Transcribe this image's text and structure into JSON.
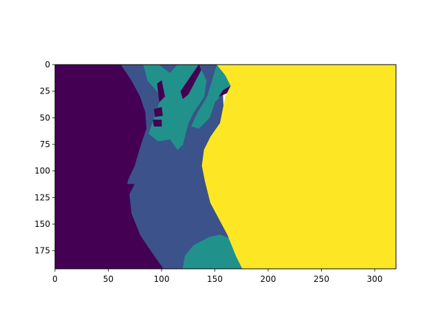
{
  "chart_data": {
    "type": "heatmap",
    "title": "",
    "xlabel": "",
    "ylabel": "",
    "xlim": [
      0,
      320
    ],
    "ylim": [
      192,
      0
    ],
    "xticks": [
      0,
      50,
      100,
      150,
      200,
      250,
      300
    ],
    "yticks": [
      0,
      25,
      50,
      75,
      100,
      125,
      150,
      175
    ],
    "grid": false,
    "colormap": "viridis",
    "classes": [
      {
        "value": 0,
        "color": "#440154"
      },
      {
        "value": 1,
        "color": "#3b528b"
      },
      {
        "value": 2,
        "color": "#21918c"
      },
      {
        "value": 3,
        "color": "#fde725"
      }
    ],
    "regions": [
      {
        "name": "region-dark-purple",
        "value": 0,
        "points": [
          [
            0,
            0
          ],
          [
            62,
            0
          ],
          [
            72,
            15
          ],
          [
            80,
            30
          ],
          [
            85,
            45
          ],
          [
            86,
            60
          ],
          [
            80,
            78
          ],
          [
            75,
            95
          ],
          [
            69,
            108
          ],
          [
            68,
            112
          ],
          [
            75,
            112
          ],
          [
            70,
            122
          ],
          [
            72,
            140
          ],
          [
            80,
            160
          ],
          [
            90,
            175
          ],
          [
            102,
            190
          ],
          [
            102,
            192
          ],
          [
            0,
            192
          ]
        ]
      },
      {
        "name": "region-slate-blue",
        "value": 1,
        "points": [
          [
            62,
            0
          ],
          [
            152,
            0
          ],
          [
            157,
            20
          ],
          [
            158,
            40
          ],
          [
            155,
            55
          ],
          [
            146,
            68
          ],
          [
            140,
            80
          ],
          [
            138,
            95
          ],
          [
            141,
            110
          ],
          [
            146,
            130
          ],
          [
            154,
            145
          ],
          [
            162,
            160
          ],
          [
            170,
            180
          ],
          [
            176,
            192
          ],
          [
            102,
            192
          ],
          [
            90,
            175
          ],
          [
            80,
            160
          ],
          [
            72,
            140
          ],
          [
            70,
            122
          ],
          [
            75,
            112
          ],
          [
            68,
            112
          ],
          [
            69,
            108
          ],
          [
            75,
            95
          ],
          [
            80,
            78
          ],
          [
            86,
            60
          ],
          [
            85,
            45
          ],
          [
            80,
            30
          ],
          [
            72,
            15
          ]
        ]
      },
      {
        "name": "region-teal-top",
        "value": 2,
        "points": [
          [
            83,
            0
          ],
          [
            97,
            0
          ],
          [
            108,
            8
          ],
          [
            115,
            0
          ],
          [
            135,
            0
          ],
          [
            142,
            15
          ],
          [
            140,
            30
          ],
          [
            130,
            45
          ],
          [
            125,
            55
          ],
          [
            120,
            75
          ],
          [
            115,
            80
          ],
          [
            108,
            70
          ],
          [
            97,
            72
          ],
          [
            88,
            65
          ],
          [
            95,
            45
          ],
          [
            100,
            30
          ],
          [
            87,
            15
          ]
        ]
      },
      {
        "name": "region-teal-right",
        "value": 2,
        "points": [
          [
            152,
            0
          ],
          [
            160,
            10
          ],
          [
            165,
            20
          ],
          [
            150,
            35
          ],
          [
            145,
            50
          ],
          [
            135,
            60
          ],
          [
            128,
            58
          ],
          [
            134,
            45
          ],
          [
            143,
            30
          ]
        ]
      },
      {
        "name": "region-teal-bottom",
        "value": 2,
        "points": [
          [
            130,
            170
          ],
          [
            145,
            162
          ],
          [
            155,
            160
          ],
          [
            168,
            165
          ],
          [
            176,
            175
          ],
          [
            185,
            192
          ],
          [
            120,
            192
          ],
          [
            122,
            180
          ]
        ]
      },
      {
        "name": "region-purple-spot-1",
        "value": 0,
        "points": [
          [
            96,
            18
          ],
          [
            100,
            15
          ],
          [
            103,
            30
          ],
          [
            98,
            35
          ]
        ]
      },
      {
        "name": "region-purple-spot-2",
        "value": 0,
        "points": [
          [
            93,
            42
          ],
          [
            100,
            40
          ],
          [
            101,
            48
          ],
          [
            94,
            49
          ]
        ]
      },
      {
        "name": "region-purple-spot-3",
        "value": 0,
        "points": [
          [
            92,
            52
          ],
          [
            100,
            52
          ],
          [
            100,
            58
          ],
          [
            93,
            58
          ]
        ]
      },
      {
        "name": "region-purple-sliver",
        "value": 0,
        "points": [
          [
            135,
            0
          ],
          [
            137,
            5
          ],
          [
            125,
            28
          ],
          [
            120,
            32
          ],
          [
            118,
            25
          ]
        ]
      },
      {
        "name": "region-purple-slit",
        "value": 0,
        "points": [
          [
            158,
            24
          ],
          [
            165,
            20
          ],
          [
            163,
            26
          ],
          [
            154,
            30
          ]
        ]
      },
      {
        "name": "region-yellow",
        "value": 3,
        "points": [
          [
            152,
            0
          ],
          [
            320,
            0
          ],
          [
            320,
            192
          ],
          [
            176,
            192
          ],
          [
            170,
            180
          ],
          [
            162,
            160
          ],
          [
            154,
            145
          ],
          [
            146,
            130
          ],
          [
            141,
            110
          ],
          [
            138,
            95
          ],
          [
            140,
            80
          ],
          [
            146,
            68
          ],
          [
            155,
            55
          ],
          [
            158,
            40
          ],
          [
            160,
            30
          ],
          [
            165,
            20
          ],
          [
            160,
            10
          ]
        ]
      }
    ]
  }
}
